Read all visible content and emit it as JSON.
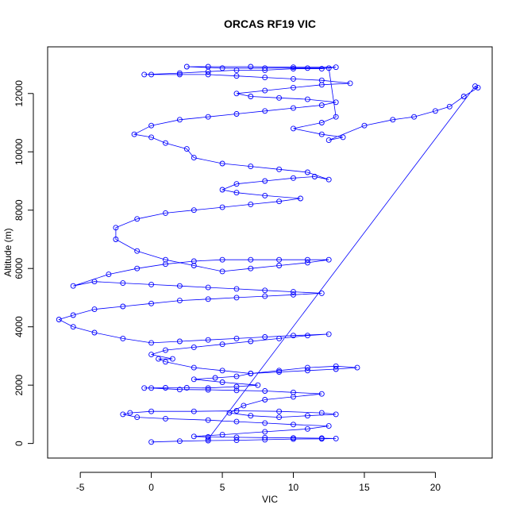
{
  "chart_data": {
    "type": "scatter",
    "title": "ORCAS RF19 VIC",
    "xlabel": "VIC",
    "ylabel": "Altitude (m)",
    "xlim": [
      -7.3,
      24.0
    ],
    "ylim": [
      -500,
      13600
    ],
    "xticks": [
      -5,
      0,
      5,
      10,
      15,
      20
    ],
    "yticks": [
      0,
      2000,
      4000,
      6000,
      8000,
      10000,
      12000
    ],
    "grid": false,
    "legend": "none",
    "point_style": "open-circle",
    "series_color": "#0000ff",
    "series": [
      {
        "values": [
          [
            0.0,
            50
          ],
          [
            2.0,
            80
          ],
          [
            4.0,
            100
          ],
          [
            6.0,
            110
          ],
          [
            8.0,
            130
          ],
          [
            10.0,
            150
          ],
          [
            12.0,
            160
          ],
          [
            13.0,
            170
          ],
          [
            12.0,
            180
          ],
          [
            10.0,
            190
          ],
          [
            8.0,
            200
          ],
          [
            6.0,
            210
          ],
          [
            4.0,
            220
          ],
          [
            3.0,
            240
          ],
          [
            5.0,
            300
          ],
          [
            8.0,
            400
          ],
          [
            11.0,
            500
          ],
          [
            12.5,
            600
          ],
          [
            10.0,
            650
          ],
          [
            8.0,
            700
          ],
          [
            6.0,
            750
          ],
          [
            4.0,
            800
          ],
          [
            1.0,
            850
          ],
          [
            -1.0,
            900
          ],
          [
            -2.0,
            1000
          ],
          [
            -1.5,
            1050
          ],
          [
            0.0,
            1100
          ],
          [
            3.0,
            1100
          ],
          [
            6.0,
            1120
          ],
          [
            9.0,
            1100
          ],
          [
            12.0,
            1050
          ],
          [
            13.0,
            1000
          ],
          [
            11.0,
            950
          ],
          [
            9.0,
            900
          ],
          [
            7.0,
            950
          ],
          [
            5.5,
            1050
          ],
          [
            6.5,
            1300
          ],
          [
            8.0,
            1500
          ],
          [
            10.0,
            1600
          ],
          [
            12.0,
            1700
          ],
          [
            10.0,
            1750
          ],
          [
            8.0,
            1800
          ],
          [
            6.0,
            1820
          ],
          [
            4.0,
            1840
          ],
          [
            2.0,
            1850
          ],
          [
            0.0,
            1900
          ],
          [
            -0.5,
            1900
          ],
          [
            1.0,
            1910
          ],
          [
            2.5,
            1910
          ],
          [
            4.0,
            1900
          ],
          [
            6.0,
            1950
          ],
          [
            7.5,
            2000
          ],
          [
            5.0,
            2100
          ],
          [
            3.0,
            2200
          ],
          [
            4.5,
            2250
          ],
          [
            6.0,
            2300
          ],
          [
            7.0,
            2400
          ],
          [
            9.0,
            2500
          ],
          [
            11.0,
            2600
          ],
          [
            13.0,
            2650
          ],
          [
            14.5,
            2600
          ],
          [
            13.0,
            2550
          ],
          [
            11.0,
            2500
          ],
          [
            9.0,
            2450
          ],
          [
            7.0,
            2400
          ],
          [
            5.0,
            2500
          ],
          [
            3.0,
            2600
          ],
          [
            1.0,
            2800
          ],
          [
            0.5,
            2900
          ],
          [
            1.5,
            2900
          ],
          [
            0.0,
            3050
          ],
          [
            1.0,
            3200
          ],
          [
            3.0,
            3300
          ],
          [
            5.0,
            3400
          ],
          [
            7.0,
            3500
          ],
          [
            9.0,
            3600
          ],
          [
            11.0,
            3700
          ],
          [
            12.5,
            3750
          ],
          [
            10.0,
            3700
          ],
          [
            8.0,
            3650
          ],
          [
            6.0,
            3600
          ],
          [
            4.0,
            3550
          ],
          [
            2.0,
            3500
          ],
          [
            0.0,
            3450
          ],
          [
            -2.0,
            3600
          ],
          [
            -4.0,
            3800
          ],
          [
            -5.5,
            4000
          ],
          [
            -6.5,
            4250
          ],
          [
            -5.5,
            4400
          ],
          [
            -4.0,
            4600
          ],
          [
            -2.0,
            4700
          ],
          [
            0.0,
            4800
          ],
          [
            2.0,
            4900
          ],
          [
            4.0,
            4950
          ],
          [
            6.0,
            5000
          ],
          [
            8.0,
            5050
          ],
          [
            10.0,
            5100
          ],
          [
            12.0,
            5150
          ],
          [
            10.0,
            5200
          ],
          [
            8.0,
            5250
          ],
          [
            6.0,
            5300
          ],
          [
            4.0,
            5350
          ],
          [
            2.0,
            5400
          ],
          [
            0.0,
            5450
          ],
          [
            -2.0,
            5500
          ],
          [
            -4.0,
            5550
          ],
          [
            -5.5,
            5400
          ],
          [
            -3.0,
            5800
          ],
          [
            -1.0,
            6000
          ],
          [
            1.0,
            6150
          ],
          [
            3.0,
            6250
          ],
          [
            5.0,
            6300
          ],
          [
            7.0,
            6300
          ],
          [
            9.0,
            6300
          ],
          [
            11.0,
            6300
          ],
          [
            12.5,
            6300
          ],
          [
            11.0,
            6200
          ],
          [
            9.0,
            6100
          ],
          [
            7.0,
            6000
          ],
          [
            5.0,
            5900
          ],
          [
            3.0,
            6100
          ],
          [
            1.0,
            6300
          ],
          [
            -1.0,
            6600
          ],
          [
            -2.5,
            7000
          ],
          [
            -2.5,
            7400
          ],
          [
            -1.0,
            7700
          ],
          [
            1.0,
            7900
          ],
          [
            3.0,
            8000
          ],
          [
            5.0,
            8100
          ],
          [
            7.0,
            8200
          ],
          [
            9.0,
            8300
          ],
          [
            10.5,
            8400
          ],
          [
            8.0,
            8500
          ],
          [
            6.0,
            8600
          ],
          [
            5.0,
            8700
          ],
          [
            6.0,
            8900
          ],
          [
            8.0,
            9000
          ],
          [
            10.0,
            9100
          ],
          [
            11.5,
            9150
          ],
          [
            12.5,
            9050
          ],
          [
            11.0,
            9300
          ],
          [
            9.0,
            9400
          ],
          [
            7.0,
            9500
          ],
          [
            5.0,
            9600
          ],
          [
            3.0,
            9800
          ],
          [
            2.5,
            10100
          ],
          [
            1.0,
            10300
          ],
          [
            0.0,
            10500
          ],
          [
            -1.2,
            10600
          ],
          [
            0.0,
            10900
          ],
          [
            2.0,
            11100
          ],
          [
            4.0,
            11200
          ],
          [
            6.0,
            11300
          ],
          [
            8.0,
            11400
          ],
          [
            10.0,
            11500
          ],
          [
            12.0,
            11600
          ],
          [
            13.0,
            11700
          ],
          [
            11.0,
            11800
          ],
          [
            9.0,
            11850
          ],
          [
            7.0,
            11900
          ],
          [
            6.0,
            12000
          ],
          [
            8.0,
            12100
          ],
          [
            10.0,
            12200
          ],
          [
            12.0,
            12300
          ],
          [
            14.0,
            12350
          ],
          [
            12.0,
            12450
          ],
          [
            10.0,
            12500
          ],
          [
            8.0,
            12550
          ],
          [
            6.0,
            12600
          ],
          [
            4.0,
            12650
          ],
          [
            2.0,
            12650
          ],
          [
            0.0,
            12650
          ],
          [
            -0.5,
            12650
          ],
          [
            2.0,
            12700
          ],
          [
            4.0,
            12750
          ],
          [
            6.0,
            12800
          ],
          [
            8.0,
            12800
          ],
          [
            10.0,
            12850
          ],
          [
            12.0,
            12850
          ],
          [
            13.0,
            12900
          ],
          [
            10.0,
            12900
          ],
          [
            7.0,
            12920
          ],
          [
            4.0,
            12920
          ],
          [
            2.5,
            12920
          ],
          [
            5.0,
            12870
          ],
          [
            8.0,
            12870
          ],
          [
            11.0,
            12870
          ],
          [
            12.5,
            12870
          ],
          [
            13.0,
            11200
          ],
          [
            12.0,
            11000
          ],
          [
            10.0,
            10800
          ],
          [
            12.0,
            10600
          ],
          [
            13.5,
            10500
          ],
          [
            12.5,
            10400
          ],
          [
            15.0,
            10900
          ],
          [
            17.0,
            11100
          ],
          [
            18.5,
            11200
          ],
          [
            20.0,
            11400
          ],
          [
            21.0,
            11550
          ],
          [
            22.0,
            11900
          ],
          [
            23.0,
            12200
          ],
          [
            22.8,
            12250
          ],
          [
            4.0,
            150
          ]
        ]
      }
    ]
  }
}
